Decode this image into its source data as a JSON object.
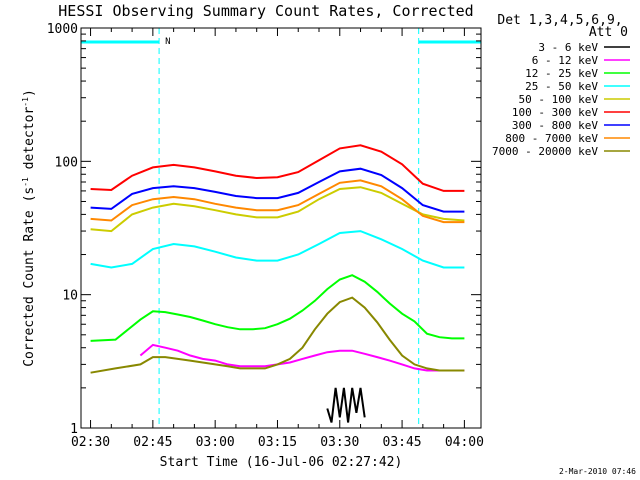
{
  "chart_data": {
    "type": "line",
    "title": "HESSI Observing Summary Count Rates, Corrected",
    "xlabel": "Start Time (16-Jul-06 02:27:42)",
    "ylabel": "Corrected Count Rate (s",
    "ylabel_sup1": "-1",
    "ylabel_mid": " detector",
    "ylabel_sup2": "-1",
    "ylabel_end": ")",
    "y_scale": "log",
    "ylim": [
      1,
      1000
    ],
    "xlim_minutes_after_0230": [
      -2.3,
      94
    ],
    "x_ticks": [
      {
        "label": "02:30",
        "t": 0
      },
      {
        "label": "02:45",
        "t": 15
      },
      {
        "label": "03:00",
        "t": 30
      },
      {
        "label": "03:15",
        "t": 45
      },
      {
        "label": "03:30",
        "t": 60
      },
      {
        "label": "03:45",
        "t": 75
      },
      {
        "label": "04:00",
        "t": 90
      }
    ],
    "y_ticks": [
      {
        "label": "1",
        "v": 1
      },
      {
        "label": "10",
        "v": 10
      },
      {
        "label": "100",
        "v": 100
      },
      {
        "label": "1000",
        "v": 1000
      }
    ],
    "grid": false,
    "legend_header": [
      "Det 1,3,4,5,6,9,",
      "Att 0"
    ],
    "legend_position": "right",
    "night_marker_label": "N",
    "night_intervals_minutes": [
      [
        -2.3,
        16.5
      ],
      [
        79,
        94
      ]
    ],
    "series": [
      {
        "name": "3 - 6 keV",
        "color": "#000000",
        "x": [
          57,
          58,
          59,
          60,
          61,
          62,
          63,
          64,
          65,
          66
        ],
        "y": [
          1.4,
          1.1,
          2.0,
          1.2,
          2.0,
          1.1,
          2.0,
          1.3,
          2.0,
          1.2
        ]
      },
      {
        "name": "6 - 12 keV",
        "color": "#ff00ff",
        "x": [
          12,
          15,
          18,
          21,
          24,
          27,
          30,
          33,
          36,
          39,
          42,
          45,
          48,
          51,
          54,
          57,
          60,
          63,
          66,
          69,
          72,
          75,
          78,
          81,
          84,
          87,
          90
        ],
        "y": [
          3.5,
          4.2,
          4.0,
          3.8,
          3.5,
          3.3,
          3.2,
          3.0,
          2.9,
          2.9,
          2.9,
          3.0,
          3.1,
          3.3,
          3.5,
          3.7,
          3.8,
          3.8,
          3.6,
          3.4,
          3.2,
          3.0,
          2.8,
          2.7,
          2.7,
          2.7,
          2.7
        ]
      },
      {
        "name": "12 - 25 keV",
        "color": "#00ff00",
        "x": [
          0,
          6,
          12,
          15,
          18,
          21,
          24,
          27,
          30,
          33,
          36,
          39,
          42,
          45,
          48,
          51,
          54,
          57,
          60,
          63,
          66,
          69,
          72,
          75,
          78,
          81,
          84,
          87,
          90
        ],
        "y": [
          4.5,
          4.6,
          6.5,
          7.5,
          7.4,
          7.1,
          6.8,
          6.4,
          6.0,
          5.7,
          5.5,
          5.5,
          5.6,
          6.0,
          6.6,
          7.6,
          9.0,
          11.0,
          13.0,
          14.0,
          12.5,
          10.5,
          8.6,
          7.2,
          6.3,
          5.1,
          4.8,
          4.7,
          4.7
        ]
      },
      {
        "name": "25 - 50 keV",
        "color": "#00ffff",
        "x": [
          0,
          5,
          10,
          15,
          20,
          25,
          30,
          35,
          40,
          45,
          50,
          55,
          60,
          65,
          70,
          75,
          80,
          85,
          90
        ],
        "y": [
          17,
          16,
          17,
          22,
          24,
          23,
          21,
          19,
          18,
          18,
          20,
          24,
          29,
          30,
          26,
          22,
          18,
          16,
          16
        ]
      },
      {
        "name": "50 - 100 keV",
        "color": "#cccc00",
        "x": [
          0,
          5,
          10,
          15,
          20,
          25,
          30,
          35,
          40,
          45,
          50,
          55,
          60,
          65,
          70,
          75,
          80,
          85,
          90
        ],
        "y": [
          31,
          30,
          40,
          45,
          48,
          46,
          43,
          40,
          38,
          38,
          42,
          52,
          62,
          64,
          58,
          48,
          40,
          37,
          36
        ]
      },
      {
        "name": "100 - 300 keV",
        "color": "#ff0000",
        "x": [
          0,
          5,
          10,
          15,
          20,
          25,
          30,
          35,
          40,
          45,
          50,
          55,
          60,
          65,
          70,
          75,
          80,
          85,
          90
        ],
        "y": [
          62,
          61,
          78,
          90,
          94,
          90,
          84,
          78,
          75,
          76,
          83,
          102,
          125,
          132,
          118,
          95,
          68,
          60,
          60
        ]
      },
      {
        "name": "300 - 800 keV",
        "color": "#0000ff",
        "x": [
          0,
          5,
          10,
          15,
          20,
          25,
          30,
          35,
          40,
          45,
          50,
          55,
          60,
          65,
          70,
          75,
          80,
          85,
          90
        ],
        "y": [
          45,
          44,
          57,
          63,
          65,
          63,
          59,
          55,
          53,
          53,
          58,
          70,
          84,
          88,
          79,
          63,
          47,
          42,
          42
        ]
      },
      {
        "name": "800 - 7000 keV",
        "color": "#ff8800",
        "x": [
          0,
          5,
          10,
          15,
          20,
          25,
          30,
          35,
          40,
          45,
          50,
          55,
          60,
          65,
          70,
          75,
          80,
          85,
          90
        ],
        "y": [
          37,
          36,
          47,
          52,
          54,
          52,
          48,
          45,
          43,
          43,
          47,
          57,
          69,
          72,
          65,
          52,
          39,
          35,
          35
        ]
      },
      {
        "name": "7000 - 20000 keV",
        "color": "#888800",
        "x": [
          0,
          6,
          12,
          15,
          18,
          21,
          24,
          27,
          30,
          33,
          36,
          39,
          42,
          45,
          48,
          51,
          54,
          57,
          60,
          63,
          66,
          69,
          72,
          75,
          78,
          81,
          84,
          87,
          90
        ],
        "y": [
          2.6,
          2.8,
          3.0,
          3.4,
          3.4,
          3.3,
          3.2,
          3.1,
          3.0,
          2.9,
          2.8,
          2.8,
          2.8,
          3.0,
          3.3,
          4.0,
          5.5,
          7.2,
          8.8,
          9.5,
          8.0,
          6.2,
          4.6,
          3.5,
          3.0,
          2.8,
          2.7,
          2.7,
          2.7
        ]
      }
    ]
  },
  "footer_timestamp": "2-Mar-2010 07:46"
}
